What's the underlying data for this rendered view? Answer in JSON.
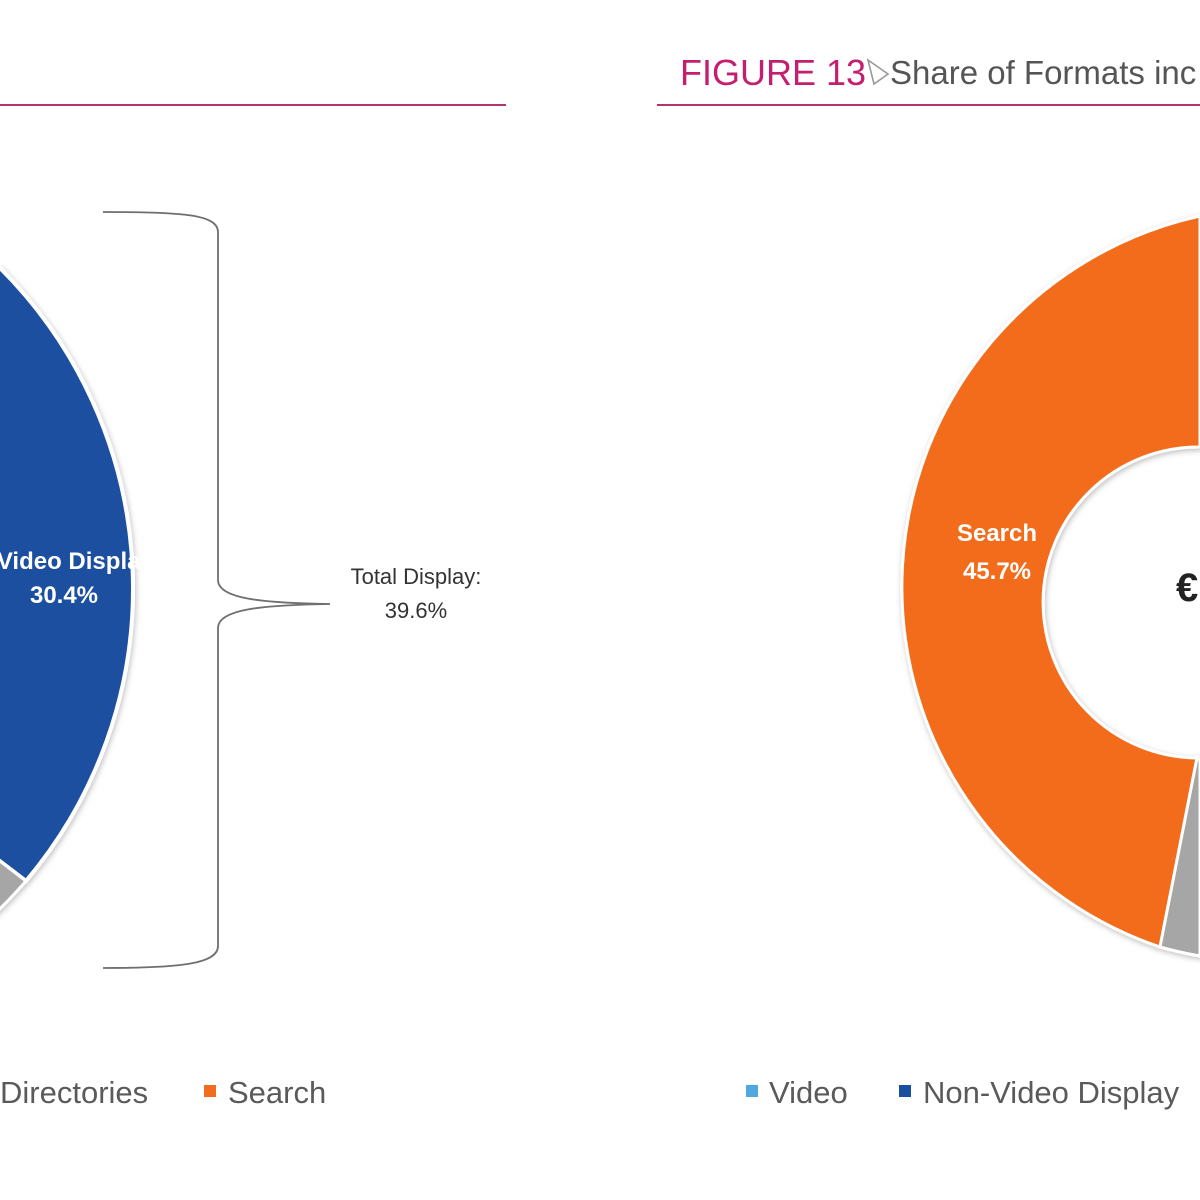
{
  "header": {
    "figure_label": "FIGURE 13",
    "figure_title": "Share of Formats inc"
  },
  "colors": {
    "rule": "#b0366e",
    "figure_label": "#c41e6e",
    "video": "#4fa8e0",
    "non_video_display": "#1a4fa0",
    "directories": "#a6a6a6",
    "search": "#f26c1f"
  },
  "chart_data": [
    {
      "type": "pie",
      "title": "",
      "slices": [
        {
          "name": "Non-Video Display",
          "value": 30.4,
          "label_line1": "n-Video Display",
          "label_line2": "30.4%"
        }
      ],
      "annotation": {
        "line1": "Total Display:",
        "line2": "39.6%"
      },
      "legend": [
        "Directories",
        "Search"
      ],
      "legend_placement": "bottom"
    },
    {
      "type": "pie",
      "title": "",
      "center_text": "€",
      "slices": [
        {
          "name": "Search",
          "value": 45.7,
          "label_line1": "Search",
          "label_line2": "45.7%"
        }
      ],
      "legend": [
        "Video",
        "Non-Video Display"
      ],
      "legend_placement": "bottom"
    }
  ]
}
